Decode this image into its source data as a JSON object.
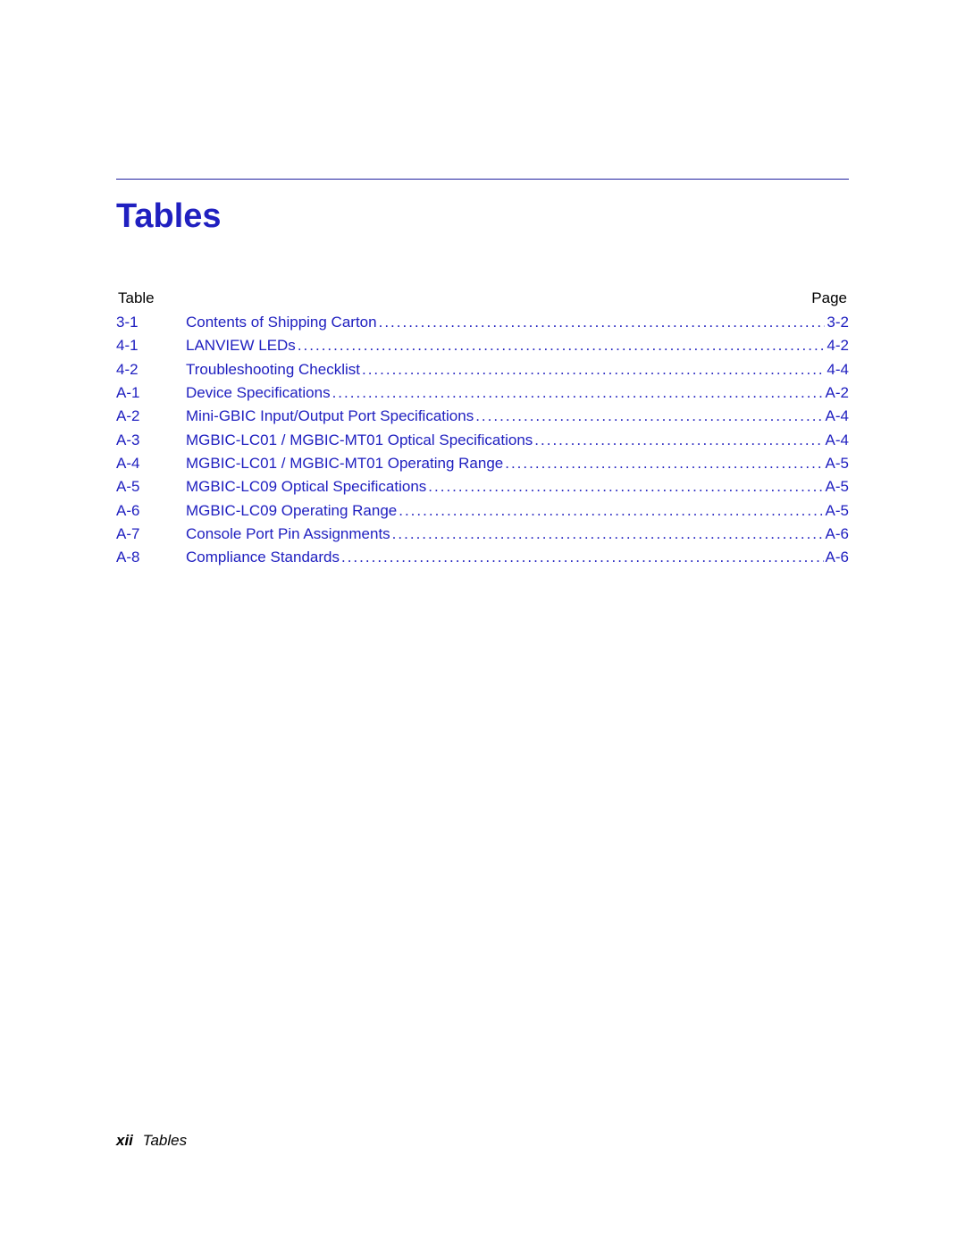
{
  "title": "Tables",
  "header": {
    "left": "Table",
    "right": "Page"
  },
  "link_color": "#2020c0",
  "text_color": "#000000",
  "divider_color": "#2020a0",
  "background_color": "#ffffff",
  "font_size_title": 38,
  "font_size_body": 17,
  "entries": [
    {
      "num": "3-1",
      "title": "Contents of Shipping Carton",
      "page": "3-2"
    },
    {
      "num": "4-1",
      "title": "LANVIEW LEDs",
      "page": "4-2"
    },
    {
      "num": "4-2",
      "title": "Troubleshooting Checklist",
      "page": "4-4"
    },
    {
      "num": "A-1",
      "title": "Device Specifications",
      "page": "A-2"
    },
    {
      "num": "A-2",
      "title": "Mini-GBIC Input/Output Port Specifications",
      "page": "A-4"
    },
    {
      "num": "A-3",
      "title": "MGBIC-LC01 / MGBIC-MT01 Optical Specifications",
      "page": "A-4"
    },
    {
      "num": "A-4",
      "title": "MGBIC-LC01 / MGBIC-MT01 Operating Range",
      "page": "A-5"
    },
    {
      "num": "A-5",
      "title": "MGBIC-LC09 Optical Specifications",
      "page": "A-5"
    },
    {
      "num": "A-6",
      "title": "MGBIC-LC09 Operating Range",
      "page": "A-5"
    },
    {
      "num": "A-7",
      "title": "Console Port Pin Assignments",
      "page": "A-6"
    },
    {
      "num": "A-8",
      "title": "Compliance Standards",
      "page": "A-6"
    }
  ],
  "footer": {
    "page_num": "xii",
    "section": "Tables"
  }
}
